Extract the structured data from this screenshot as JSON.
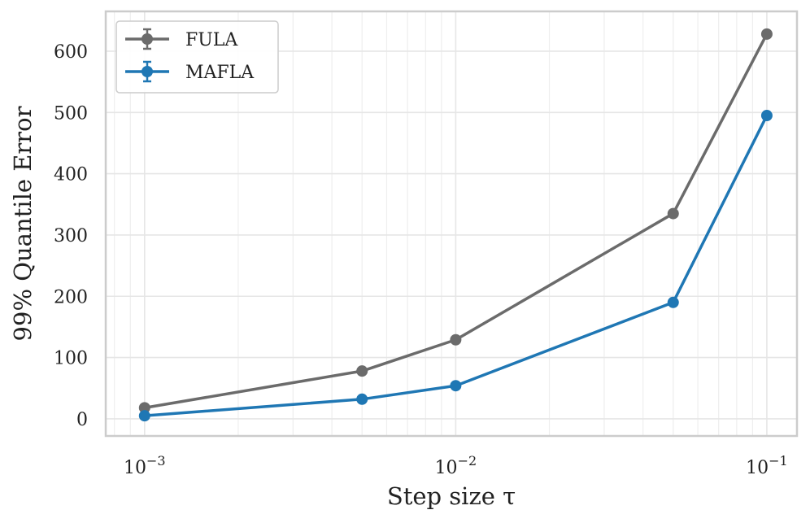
{
  "chart_data": {
    "type": "line",
    "xlabel": "Step size τ",
    "ylabel": "99% Quantile Error",
    "xscale": "log",
    "xlim": [
      0.00075,
      0.125
    ],
    "ylim": [
      -28,
      665
    ],
    "xticks": [
      {
        "value": 0.001,
        "base": "10",
        "exp": "−3"
      },
      {
        "value": 0.01,
        "base": "10",
        "exp": "−2"
      },
      {
        "value": 0.1,
        "base": "10",
        "exp": "−1"
      }
    ],
    "yticks": [
      0,
      100,
      200,
      300,
      400,
      500,
      600
    ],
    "grid": true,
    "legend": "top-left",
    "x": [
      0.001,
      0.005,
      0.01,
      0.05,
      0.1
    ],
    "series": [
      {
        "name": "FULA",
        "color": "#6b6b6b",
        "values": [
          18,
          78,
          129,
          335,
          628
        ]
      },
      {
        "name": "MAFLA",
        "color": "#1f77b4",
        "values": [
          5,
          32,
          54,
          190,
          495
        ]
      }
    ]
  }
}
